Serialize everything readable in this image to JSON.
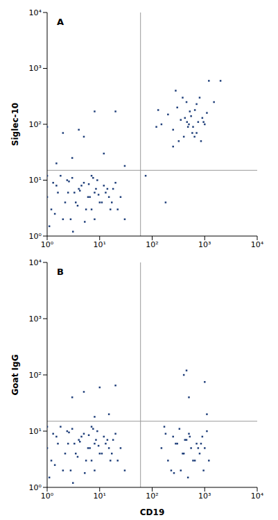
{
  "chart_data": [
    {
      "type": "scatter",
      "title": "A",
      "y_label": "Siglec-10",
      "log": true,
      "color": "#1f3f7a",
      "marker": "square",
      "xlim": [
        1,
        10000
      ],
      "ylim": [
        1,
        10000
      ],
      "xticks": [
        {
          "value": 1,
          "label": "10⁰"
        },
        {
          "value": 10,
          "label": "10¹"
        },
        {
          "value": 100,
          "label": "10²"
        },
        {
          "value": 1000,
          "label": "10³"
        },
        {
          "value": 10000,
          "label": "10⁴"
        }
      ],
      "yticks": [
        {
          "value": 1,
          "label": "10⁰"
        },
        {
          "value": 10,
          "label": "10¹"
        },
        {
          "value": 100,
          "label": "10²"
        },
        {
          "value": 1000,
          "label": "10³"
        },
        {
          "value": 10000,
          "label": "10⁴"
        }
      ],
      "gates": {
        "x": 60,
        "y": 15
      },
      "x": [
        1,
        1.2,
        1.5,
        2,
        2.5,
        3,
        3.5,
        4,
        5,
        6,
        7,
        8,
        9,
        10,
        12,
        15,
        18,
        22,
        1.1,
        1.3,
        1.8,
        2.2,
        2.8,
        3.3,
        4.5,
        5.5,
        6.5,
        7.5,
        8.5,
        11,
        13,
        16,
        20,
        25,
        30,
        1,
        1.4,
        2.4,
        3.8,
        4.2,
        5.2,
        6.2,
        7,
        8,
        9.5,
        14,
        17,
        1.6,
        2.6,
        3.1,
        1,
        1.5,
        2,
        3,
        5,
        8,
        12,
        20,
        4,
        30,
        180,
        75,
        150,
        200,
        250,
        300,
        350,
        400,
        450,
        500,
        550,
        600,
        650,
        700,
        750,
        800,
        900,
        1000,
        1100,
        1200,
        1500,
        2000,
        250,
        320,
        380,
        420,
        480,
        520,
        580,
        700,
        850,
        950,
        120,
        280,
        460,
        640,
        130
      ],
      "values": [
        5,
        3,
        8,
        2,
        6,
        11,
        4,
        7,
        9,
        5,
        3,
        6,
        10,
        4,
        8,
        5,
        7,
        3,
        1.5,
        9,
        12,
        4,
        2,
        6,
        8,
        3,
        5,
        11,
        7,
        4,
        6,
        3,
        9,
        5,
        2,
        12,
        2.5,
        10,
        3.5,
        6.5,
        1.8,
        8.5,
        12,
        2,
        5.5,
        7,
        4,
        6,
        9.5,
        1.2,
        90,
        20,
        70,
        25,
        60,
        170,
        30,
        170,
        80,
        18,
        4,
        12,
        100,
        150,
        80,
        200,
        120,
        60,
        250,
        100,
        140,
        90,
        180,
        70,
        110,
        300,
        130,
        100,
        160,
        600,
        250,
        600,
        40,
        50,
        300,
        130,
        90,
        170,
        70,
        230,
        50,
        110,
        90,
        400,
        110,
        60,
        180
      ]
    },
    {
      "type": "scatter",
      "title": "B",
      "y_label": "Goat IgG",
      "x_label": "CD19",
      "log": true,
      "color": "#1f3f7a",
      "marker": "square",
      "xlim": [
        1,
        10000
      ],
      "ylim": [
        1,
        10000
      ],
      "xticks": [
        {
          "value": 1,
          "label": "10⁰"
        },
        {
          "value": 10,
          "label": "10¹"
        },
        {
          "value": 100,
          "label": "10²"
        },
        {
          "value": 1000,
          "label": "10³"
        },
        {
          "value": 10000,
          "label": "10⁴"
        }
      ],
      "yticks": [
        {
          "value": 1,
          "label": "10⁰"
        },
        {
          "value": 10,
          "label": "10¹"
        },
        {
          "value": 100,
          "label": "10²"
        },
        {
          "value": 1000,
          "label": "10³"
        },
        {
          "value": 10000,
          "label": "10⁴"
        }
      ],
      "gates": {
        "x": 60,
        "y": 15
      },
      "x": [
        1,
        1.2,
        1.5,
        2,
        2.5,
        3,
        3.5,
        4,
        5,
        6,
        7,
        8,
        9,
        10,
        12,
        15,
        18,
        22,
        1.1,
        1.3,
        1.8,
        2.2,
        2.8,
        3.3,
        4.5,
        5.5,
        6.5,
        7.5,
        8.5,
        11,
        13,
        16,
        20,
        25,
        30,
        1,
        1.4,
        2.4,
        3.8,
        4.2,
        5.2,
        6.2,
        7,
        8,
        9.5,
        14,
        17,
        1.6,
        2.6,
        3.1,
        3,
        5,
        10,
        20,
        15,
        8,
        150,
        200,
        250,
        300,
        350,
        400,
        450,
        500,
        550,
        600,
        700,
        800,
        900,
        1000,
        1100,
        1200,
        180,
        230,
        280,
        330,
        380,
        420,
        480,
        520,
        650,
        750,
        850,
        950,
        170,
        260,
        400,
        450,
        1000,
        500,
        1100
      ],
      "values": [
        5,
        3,
        8,
        2,
        6,
        11,
        4,
        7,
        9,
        5,
        3,
        6,
        10,
        4,
        8,
        5,
        7,
        3,
        1.5,
        9,
        12,
        4,
        2,
        6,
        8,
        3,
        5,
        11,
        7,
        4,
        6,
        3,
        9,
        5,
        2,
        12,
        2.5,
        10,
        3.5,
        6.5,
        1.8,
        8.5,
        12,
        2,
        5.5,
        7,
        4,
        6,
        9.5,
        1.2,
        40,
        50,
        60,
        65,
        20,
        18,
        5,
        3,
        8,
        6,
        2,
        4,
        7,
        9,
        5,
        3,
        6,
        4,
        8,
        5,
        10,
        3,
        9,
        2,
        6,
        11,
        4,
        7,
        1.5,
        8,
        3,
        5,
        6,
        2,
        12,
        1.8,
        100,
        120,
        75,
        40,
        20
      ]
    }
  ]
}
